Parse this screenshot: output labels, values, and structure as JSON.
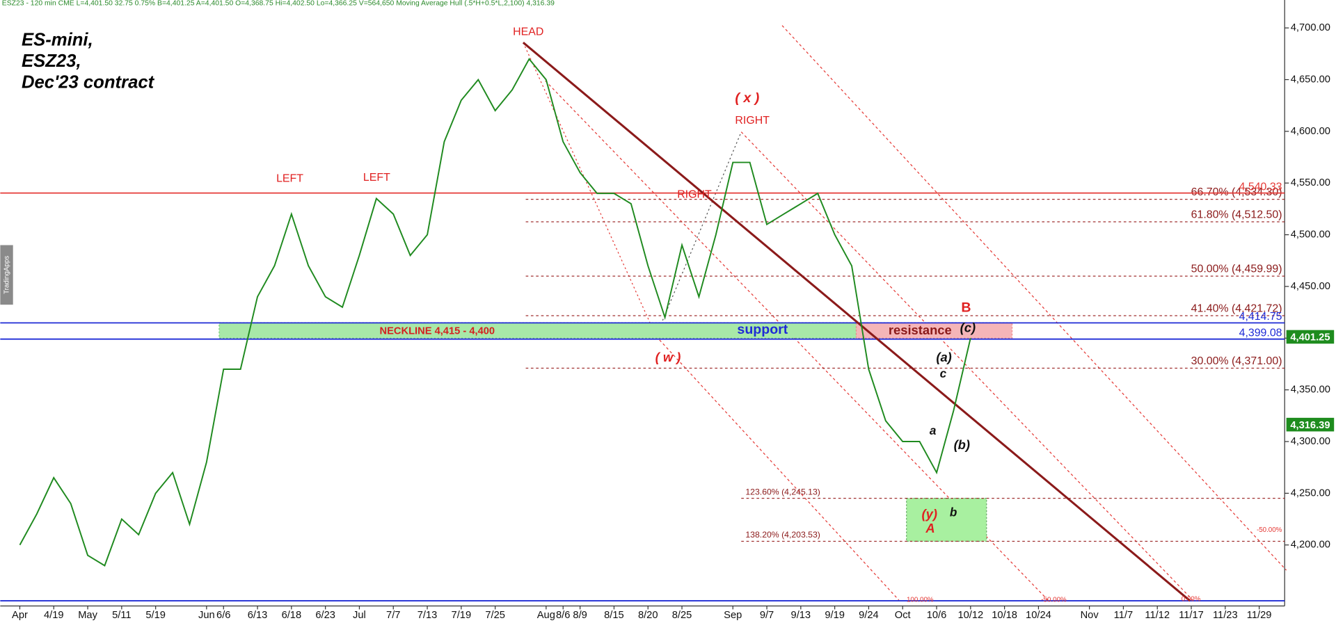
{
  "header": "ESZ23 - 120 min CME L=4,401.50 32.75 0.75% B=4,401.25 A=4,401.50 O=4,368.75 Hi=4,402.50 Lo=4,366.25 V=564,650 Moving Average Hull (.5*H+0.5*L,2,100) 4,316.39",
  "watermark": "TradingApps",
  "chart_data": {
    "type": "line",
    "title": [
      "ES-mini,",
      "ESZ23,",
      "Dec'23 contract"
    ],
    "categories": [
      "Apr",
      null,
      "4/19",
      null,
      "May",
      null,
      "5/11",
      null,
      "5/19",
      null,
      null,
      "Jun",
      "6/6",
      null,
      "6/13",
      null,
      "6/18",
      null,
      "6/23",
      null,
      "Jul",
      null,
      "7/7",
      null,
      "7/13",
      null,
      "7/19",
      null,
      "7/25",
      null,
      null,
      "Aug",
      "8/6",
      "8/9",
      null,
      "8/15",
      null,
      "8/20",
      null,
      "8/25",
      null,
      null,
      "Sep",
      null,
      "9/7",
      null,
      "9/13",
      null,
      "9/19",
      null,
      "9/24",
      null,
      "Oct",
      null,
      "10/6",
      null,
      "10/12",
      null,
      "10/18",
      null,
      "10/24",
      null,
      null,
      "Nov",
      null,
      "11/7",
      null,
      "11/12",
      null,
      "11/17",
      null,
      "11/23",
      null,
      "11/29",
      null
    ],
    "values": [
      4200,
      4230,
      4265,
      4240,
      4190,
      4180,
      4225,
      4210,
      4250,
      4270,
      4220,
      4280,
      4370,
      4370,
      4440,
      4470,
      4520,
      4470,
      4440,
      4430,
      4480,
      4535,
      4520,
      4480,
      4500,
      4590,
      4630,
      4650,
      4620,
      4640,
      4670,
      4650,
      4590,
      4560,
      4540,
      4540,
      4530,
      4470,
      4420,
      4490,
      4440,
      4500,
      4570,
      4570,
      4510,
      4520,
      4530,
      4540,
      4500,
      4470,
      4370,
      4320,
      4300,
      4300,
      4270,
      4330,
      4400,
      null,
      null,
      null,
      null,
      null,
      null,
      null,
      null,
      null,
      null,
      null,
      null,
      null,
      null,
      null,
      null,
      null,
      null
    ],
    "color": "#1f8a1f",
    "ylim": [
      4141,
      4727
    ],
    "yticks": [
      {
        "value": 4200,
        "label": "4,200.00"
      },
      {
        "value": 4250,
        "label": "4,250.00"
      },
      {
        "value": 4300,
        "label": "4,300.00"
      },
      {
        "value": 4350,
        "label": "4,350.00"
      },
      {
        "value": 4400,
        "label": "4,400.00"
      },
      {
        "value": 4450,
        "label": "4,450.00"
      },
      {
        "value": 4500,
        "label": "4,500.00"
      },
      {
        "value": 4550,
        "label": "4,550.00"
      },
      {
        "value": 4600,
        "label": "4,600.00"
      },
      {
        "value": 4650,
        "label": "4,650.00"
      },
      {
        "value": 4700,
        "label": "4,700.00"
      }
    ],
    "levels": [
      {
        "value": 4540.33,
        "label": "4,540.33",
        "color": "#e53935"
      },
      {
        "value": 4414.75,
        "label": "4,414.75",
        "color": "#1f2bd6"
      },
      {
        "value": 4399.08,
        "label": "4,399.08",
        "color": "#1f2bd6"
      },
      {
        "value": 4146,
        "color": "#1f2bd6"
      }
    ],
    "fib_retracements": [
      {
        "value": 4534.3,
        "label": "66.70% (4,534.30)"
      },
      {
        "value": 4512.5,
        "label": "61.80% (4,512.50)"
      },
      {
        "value": 4459.99,
        "label": "50.00% (4,459.99)"
      },
      {
        "value": 4421.72,
        "label": "41.40% (4,421.72)"
      },
      {
        "value": 4371,
        "label": "30.00% (4,371.00)"
      }
    ],
    "fib_extensions": [
      {
        "value": 4245.13,
        "label": "123.60% (4,245.13)"
      },
      {
        "value": 4203.53,
        "label": "138.20% (4,203.53)"
      }
    ],
    "zones": [
      {
        "label": "NECKLINE 4,415 - 4,400",
        "range": [
          4400,
          4415
        ],
        "color": "#a8e8a8"
      },
      {
        "label": "resistance",
        "range": [
          4400,
          4415
        ],
        "color": "#f5b5b8"
      }
    ],
    "price_tags": [
      {
        "value": 4401.25,
        "label": "4,401.25",
        "color": "#1e8c1e"
      },
      {
        "value": 4316.39,
        "label": "4,316.39",
        "color": "#1e8c1e"
      }
    ],
    "annotations": [
      "HEAD",
      "LEFT",
      "LEFT",
      "RIGHT",
      "RIGHT",
      "( x )",
      "( w )",
      "support",
      "(y)",
      "A",
      "B",
      "(c)",
      "(a)",
      "c",
      "a",
      "(b)",
      "b",
      "100.00%",
      "-50.00%",
      "0.00%",
      "-50.00%"
    ]
  }
}
